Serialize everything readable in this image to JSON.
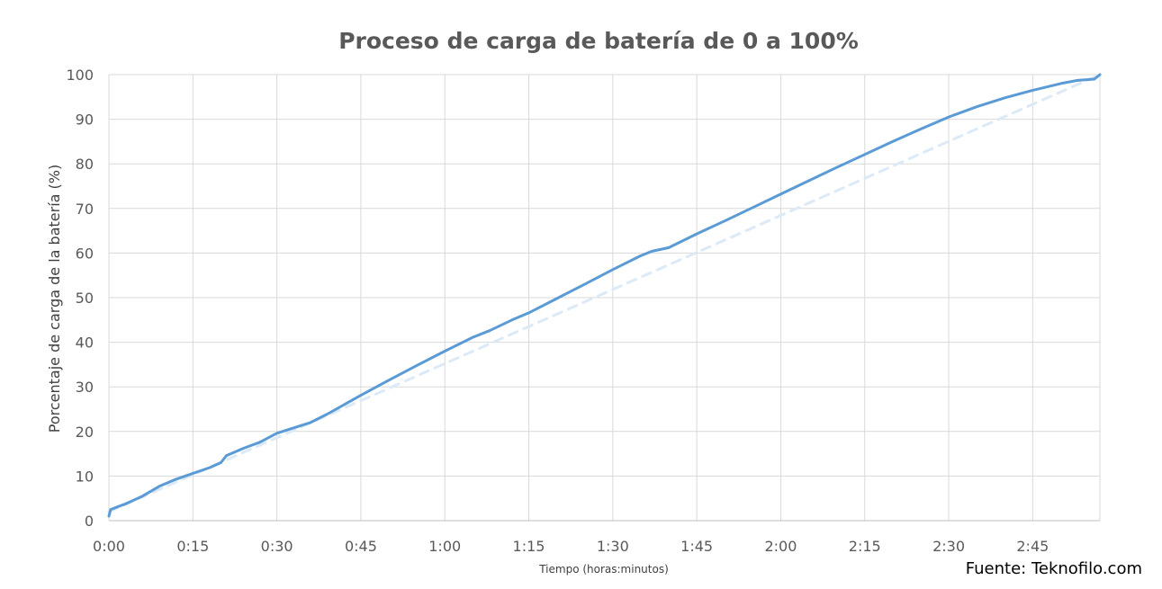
{
  "chart_data": {
    "type": "line",
    "title": "Proceso de carga de batería de 0 a 100%",
    "xlabel": "Tiempo (horas:minutos)",
    "ylabel": "Porcentaje de carga de la batería (%)",
    "xlim": [
      0,
      177
    ],
    "ylim": [
      0,
      100
    ],
    "x_ticks": [
      {
        "value": 0,
        "label": "0:00"
      },
      {
        "value": 15,
        "label": "0:15"
      },
      {
        "value": 30,
        "label": "0:30"
      },
      {
        "value": 45,
        "label": "0:45"
      },
      {
        "value": 60,
        "label": "1:00"
      },
      {
        "value": 75,
        "label": "1:15"
      },
      {
        "value": 90,
        "label": "1:30"
      },
      {
        "value": 105,
        "label": "1:45"
      },
      {
        "value": 120,
        "label": "2:00"
      },
      {
        "value": 135,
        "label": "2:15"
      },
      {
        "value": 150,
        "label": "2:30"
      },
      {
        "value": 165,
        "label": "2:45"
      }
    ],
    "y_ticks": [
      0,
      10,
      20,
      30,
      40,
      50,
      60,
      70,
      80,
      90,
      100
    ],
    "grid": true,
    "series": [
      {
        "role": "measured",
        "style": "solid",
        "color": "#5b9bd5",
        "points": [
          [
            0,
            1
          ],
          [
            0.3,
            2.5
          ],
          [
            3,
            3.8
          ],
          [
            6,
            5.5
          ],
          [
            9,
            7.7
          ],
          [
            12,
            9.3
          ],
          [
            15,
            10.6
          ],
          [
            18,
            11.9
          ],
          [
            20,
            13.0
          ],
          [
            21,
            14.6
          ],
          [
            24,
            16.2
          ],
          [
            27,
            17.6
          ],
          [
            30,
            19.6
          ],
          [
            33,
            20.8
          ],
          [
            36,
            22.0
          ],
          [
            39,
            23.9
          ],
          [
            45,
            28.1
          ],
          [
            50,
            31.5
          ],
          [
            55,
            34.8
          ],
          [
            60,
            38.0
          ],
          [
            65,
            41.1
          ],
          [
            68,
            42.6
          ],
          [
            72,
            45.0
          ],
          [
            75,
            46.6
          ],
          [
            80,
            49.8
          ],
          [
            85,
            53.0
          ],
          [
            90,
            56.3
          ],
          [
            95,
            59.4
          ],
          [
            97,
            60.4
          ],
          [
            100,
            61.2
          ],
          [
            105,
            64.3
          ],
          [
            110,
            67.2
          ],
          [
            115,
            70.2
          ],
          [
            120,
            73.2
          ],
          [
            125,
            76.2
          ],
          [
            130,
            79.2
          ],
          [
            135,
            82.1
          ],
          [
            140,
            85.0
          ],
          [
            145,
            87.8
          ],
          [
            150,
            90.5
          ],
          [
            155,
            92.8
          ],
          [
            160,
            94.8
          ],
          [
            165,
            96.5
          ],
          [
            170,
            98.0
          ],
          [
            173,
            98.7
          ],
          [
            176,
            99.0
          ],
          [
            177,
            100
          ]
        ]
      },
      {
        "role": "reference",
        "style": "dashed",
        "color": "#dce9f6",
        "points": [
          [
            0,
            2
          ],
          [
            177,
            100
          ]
        ]
      }
    ]
  },
  "source_note": "Fuente: Teknofilo.com"
}
